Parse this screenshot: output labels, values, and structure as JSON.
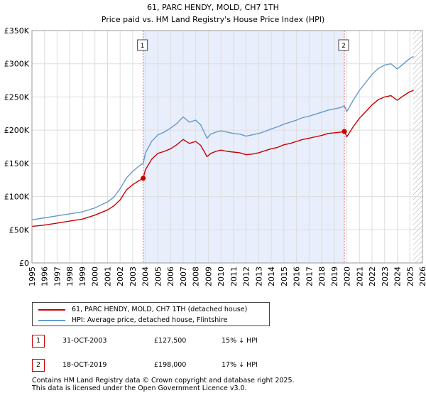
{
  "chart_data": {
    "type": "line",
    "title": "61, PARC HENDY, MOLD, CH7 1TH",
    "subtitle": "Price paid vs. HM Land Registry's House Price Index (HPI)",
    "xlabel": "",
    "ylabel": "",
    "xlim": [
      1995.0,
      2026.0
    ],
    "ylim": [
      0,
      350000
    ],
    "yticks": [
      0,
      50000,
      100000,
      150000,
      200000,
      250000,
      300000,
      350000
    ],
    "ytick_labels": [
      "£0",
      "£50K",
      "£100K",
      "£150K",
      "£200K",
      "£250K",
      "£300K",
      "£350K"
    ],
    "xticks": [
      1995,
      1996,
      1997,
      1998,
      1999,
      2000,
      2001,
      2002,
      2003,
      2004,
      2005,
      2006,
      2007,
      2008,
      2009,
      2010,
      2011,
      2012,
      2013,
      2014,
      2015,
      2016,
      2017,
      2018,
      2019,
      2020,
      2021,
      2022,
      2023,
      2024,
      2025,
      2026
    ],
    "grid": true,
    "colors": {
      "property": "#cc0000",
      "hpi": "#6699cc",
      "shade": "#e8eefb",
      "vline": "#e06666",
      "hatch": "#aaaaaa",
      "grid": "#dddddd"
    },
    "shaded_range": [
      2003.83,
      2019.8
    ],
    "forecast_from": 2025.25,
    "series": [
      {
        "name": "61, PARC HENDY, MOLD, CH7 1TH (detached house)",
        "color": "#cc0000",
        "x": [
          1995.0,
          1996.0,
          1997.0,
          1998.0,
          1999.0,
          2000.0,
          2001.0,
          2001.5,
          2002.0,
          2002.5,
          2003.0,
          2003.5,
          2003.83,
          2004.0,
          2004.5,
          2005.0,
          2005.5,
          2006.0,
          2006.5,
          2007.0,
          2007.5,
          2008.0,
          2008.4,
          2008.9,
          2009.2,
          2009.6,
          2010.0,
          2010.5,
          2011.0,
          2011.5,
          2012.0,
          2012.5,
          2013.0,
          2013.5,
          2014.0,
          2014.5,
          2015.0,
          2015.5,
          2016.0,
          2016.5,
          2017.0,
          2017.5,
          2018.0,
          2018.5,
          2019.0,
          2019.5,
          2019.8,
          2020.0,
          2020.5,
          2021.0,
          2021.5,
          2022.0,
          2022.5,
          2023.0,
          2023.5,
          2024.0,
          2024.5,
          2025.0,
          2025.3
        ],
        "y": [
          55000,
          57000,
          60000,
          63000,
          66000,
          72000,
          80000,
          86000,
          95000,
          110000,
          118000,
          124000,
          127500,
          140000,
          156000,
          165000,
          168000,
          172000,
          178000,
          186000,
          180000,
          183000,
          177000,
          160000,
          165000,
          168000,
          170000,
          168000,
          167000,
          166000,
          163000,
          164000,
          166000,
          169000,
          172000,
          174000,
          178000,
          180000,
          183000,
          186000,
          188000,
          190000,
          192000,
          195000,
          196000,
          197000,
          198000,
          190000,
          205000,
          218000,
          228000,
          238000,
          246000,
          250000,
          252000,
          245000,
          252000,
          258000,
          260000
        ]
      },
      {
        "name": "HPI: Average price, detached house, Flintshire",
        "color": "#6699cc",
        "x": [
          1995.0,
          1996.0,
          1997.0,
          1998.0,
          1999.0,
          2000.0,
          2001.0,
          2001.5,
          2002.0,
          2002.5,
          2003.0,
          2003.5,
          2003.83,
          2004.0,
          2004.5,
          2005.0,
          2005.5,
          2006.0,
          2006.5,
          2007.0,
          2007.5,
          2008.0,
          2008.4,
          2008.9,
          2009.2,
          2009.6,
          2010.0,
          2010.5,
          2011.0,
          2011.5,
          2012.0,
          2012.5,
          2013.0,
          2013.5,
          2014.0,
          2014.5,
          2015.0,
          2015.5,
          2016.0,
          2016.5,
          2017.0,
          2017.5,
          2018.0,
          2018.5,
          2019.0,
          2019.5,
          2019.8,
          2020.0,
          2020.5,
          2021.0,
          2021.5,
          2022.0,
          2022.5,
          2023.0,
          2023.5,
          2024.0,
          2024.5,
          2025.0,
          2025.3
        ],
        "y": [
          65000,
          68000,
          71000,
          74000,
          77000,
          83000,
          92000,
          99000,
          112000,
          128000,
          138000,
          146000,
          150000,
          165000,
          183000,
          193000,
          197000,
          203000,
          210000,
          220000,
          212000,
          215000,
          208000,
          188000,
          194000,
          197000,
          199000,
          197000,
          195000,
          194000,
          191000,
          193000,
          195000,
          198000,
          202000,
          205000,
          209000,
          212000,
          215000,
          219000,
          221000,
          224000,
          227000,
          230000,
          232000,
          234000,
          237000,
          228000,
          245000,
          260000,
          272000,
          284000,
          293000,
          298000,
          300000,
          292000,
          300000,
          308000,
          311000
        ]
      }
    ],
    "annotations": [
      {
        "label": "1",
        "x": 2003.83,
        "y": 127500
      },
      {
        "label": "2",
        "x": 2019.8,
        "y": 198000
      }
    ]
  },
  "legend": {
    "property_label": "61, PARC HENDY, MOLD, CH7 1TH (detached house)",
    "hpi_label": "HPI: Average price, detached house, Flintshire"
  },
  "transactions": [
    {
      "num": "1",
      "date": "31-OCT-2003",
      "price": "£127,500",
      "delta": "15% ↓ HPI"
    },
    {
      "num": "2",
      "date": "18-OCT-2019",
      "price": "£198,000",
      "delta": "17% ↓ HPI"
    }
  ],
  "footer": "Contains HM Land Registry data © Crown copyright and database right 2025.\nThis data is licensed under the Open Government Licence v3.0."
}
